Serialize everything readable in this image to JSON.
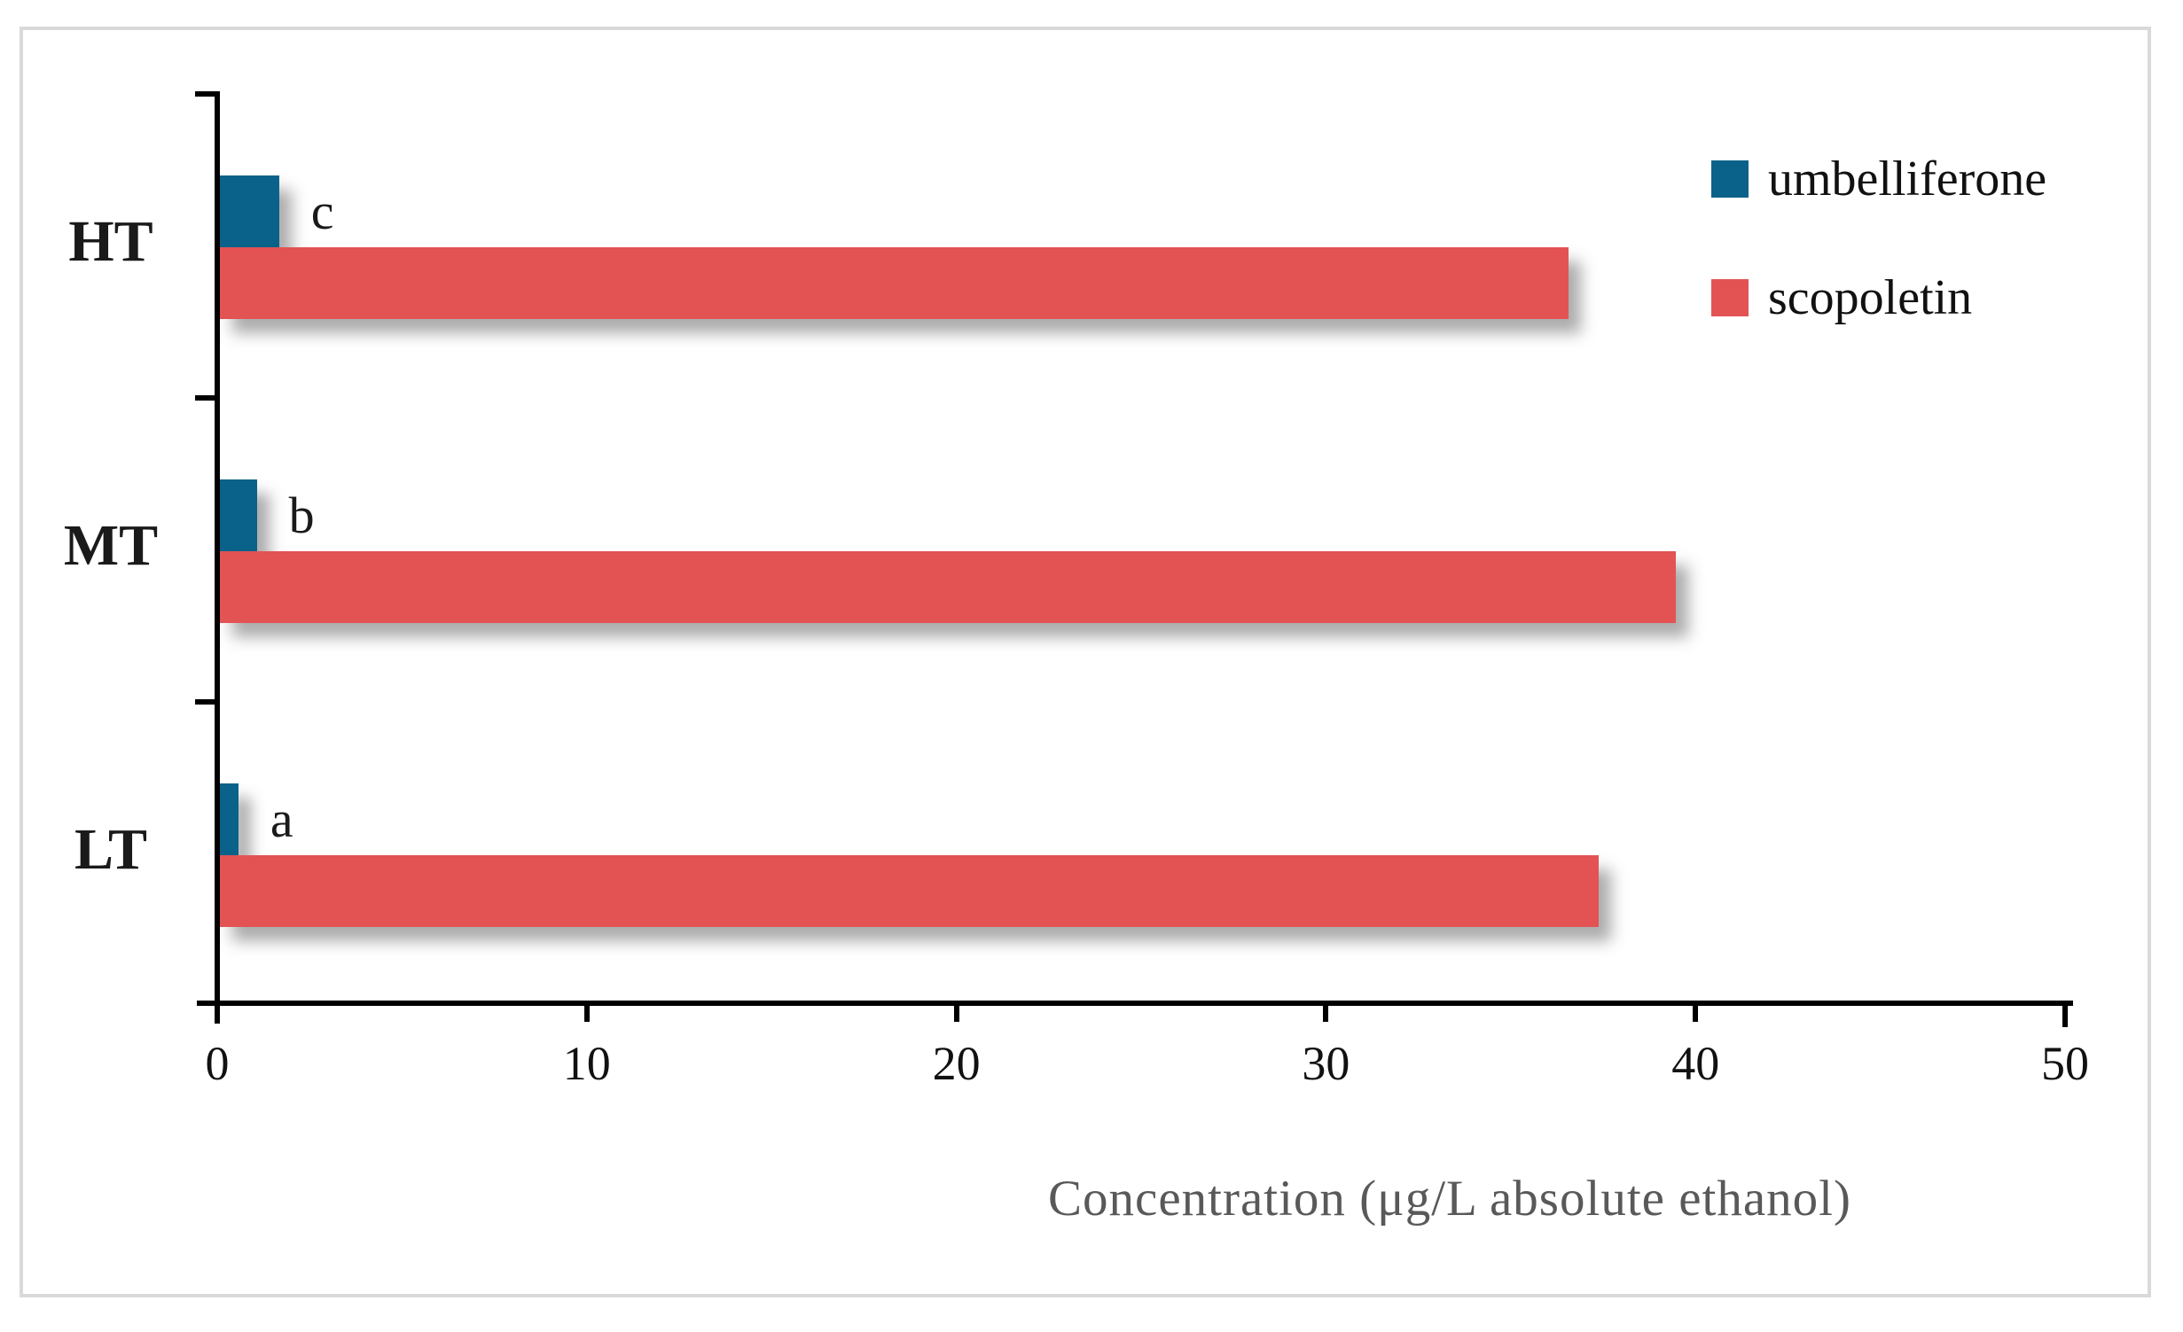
{
  "chart_data": {
    "type": "bar",
    "orientation": "horizontal",
    "title": "",
    "xlabel": "Concentration (μg/L absolute ethanol)",
    "ylabel": "",
    "categories": [
      "HT",
      "MT",
      "LT"
    ],
    "series": [
      {
        "name": "umbelliferone",
        "color": "#0a628a",
        "values": [
          1.6,
          1.0,
          0.5
        ]
      },
      {
        "name": "scopoletin",
        "color": "#e35354",
        "values": [
          36.5,
          39.4,
          37.3
        ]
      }
    ],
    "annotations": [
      {
        "category": "HT",
        "series": "umbelliferone",
        "label": "c"
      },
      {
        "category": "MT",
        "series": "umbelliferone",
        "label": "b"
      },
      {
        "category": "LT",
        "series": "umbelliferone",
        "label": "a"
      }
    ],
    "xlim": [
      0,
      50
    ],
    "xticks": [
      0,
      10,
      20,
      30,
      40,
      50
    ],
    "grid": false,
    "legend_position": "top-right",
    "legend": [
      "umbelliferone",
      "scopoletin"
    ]
  },
  "colors": {
    "axis": "#000000",
    "xlabel_text": "#595959",
    "figure_border": "#d9d9d9",
    "background": "#ffffff"
  }
}
